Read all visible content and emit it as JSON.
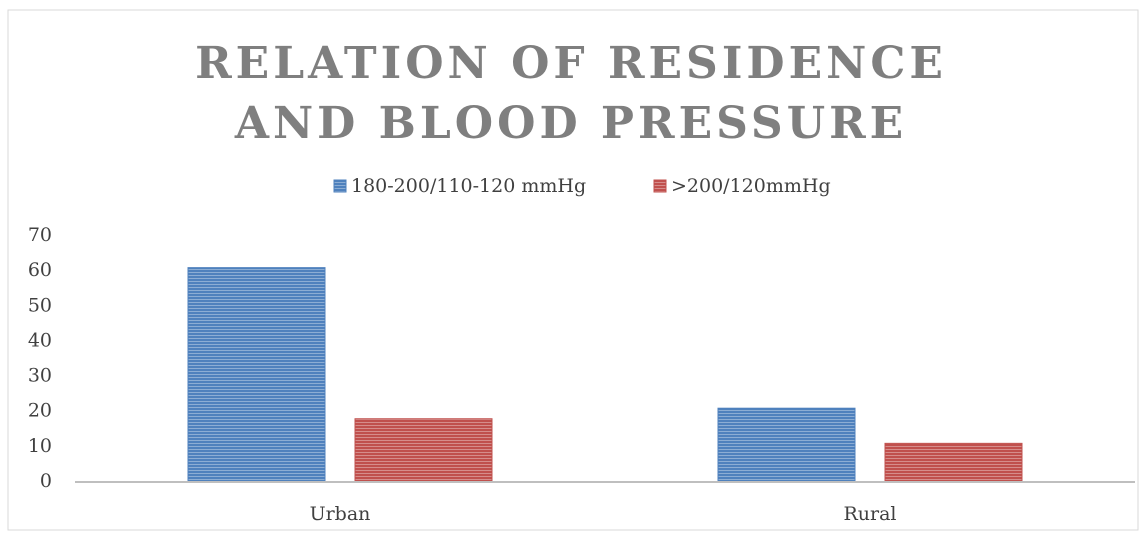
{
  "chart_data": {
    "type": "bar",
    "title": "RELATION OF RESIDENCE AND BLOOD PRESSURE",
    "categories": [
      "Urban",
      "Rural"
    ],
    "series": [
      {
        "name": "180-200/110-120 mmHg",
        "color": "#4f81bd",
        "values": [
          61,
          21
        ]
      },
      {
        "name": ">200/120mmHg",
        "color": "#c0504d",
        "values": [
          18,
          11
        ]
      }
    ],
    "ylim": [
      0,
      70
    ],
    "yticks": [
      0,
      10,
      20,
      30,
      40,
      50,
      60,
      70
    ],
    "grid": false,
    "legend": "top"
  }
}
